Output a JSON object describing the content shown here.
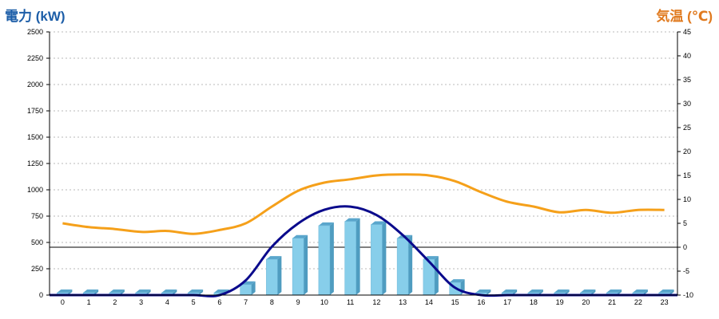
{
  "chart_data": {
    "type": "bar",
    "left_axis": {
      "title": "電力 (kW)",
      "ylim": [
        0,
        2500
      ],
      "ticks": [
        "0",
        "250",
        "500",
        "750",
        "1000",
        "1250",
        "1500",
        "1750",
        "2000",
        "2250",
        "2500"
      ]
    },
    "right_axis": {
      "title": "気温 (℃)",
      "ylim": [
        -10,
        45
      ],
      "ticks": [
        "-10",
        "-5",
        "0",
        "5",
        "10",
        "15",
        "20",
        "25",
        "30",
        "35",
        "40",
        "45"
      ]
    },
    "categories": [
      "0",
      "1",
      "2",
      "3",
      "4",
      "5",
      "6",
      "7",
      "8",
      "9",
      "10",
      "11",
      "12",
      "13",
      "14",
      "15",
      "16",
      "17",
      "18",
      "19",
      "20",
      "21",
      "22",
      "23"
    ],
    "series": [
      {
        "type": "bar",
        "axis": "left",
        "color": "#87ceea",
        "values": [
          0,
          0,
          0,
          0,
          0,
          0,
          0,
          100,
          340,
          540,
          660,
          700,
          670,
          540,
          340,
          120,
          0,
          0,
          0,
          0,
          0,
          0,
          0,
          0
        ]
      },
      {
        "type": "line",
        "axis": "left",
        "color": "#0a0a8c",
        "values": [
          0,
          0,
          0,
          0,
          0,
          0,
          0,
          140,
          460,
          680,
          810,
          840,
          760,
          570,
          320,
          70,
          0,
          0,
          0,
          0,
          0,
          0,
          0,
          0
        ]
      },
      {
        "type": "line",
        "axis": "right",
        "color": "#f5a01a",
        "values": [
          5,
          4.2,
          3.8,
          3.2,
          3.4,
          2.8,
          3.6,
          5,
          8.5,
          11.8,
          13.5,
          14.2,
          15,
          15.2,
          15,
          13.8,
          11.5,
          9.5,
          8.5,
          7.3,
          7.8,
          7.2,
          7.8,
          7.8
        ]
      }
    ],
    "grid": true,
    "reference_line_right": 0
  }
}
